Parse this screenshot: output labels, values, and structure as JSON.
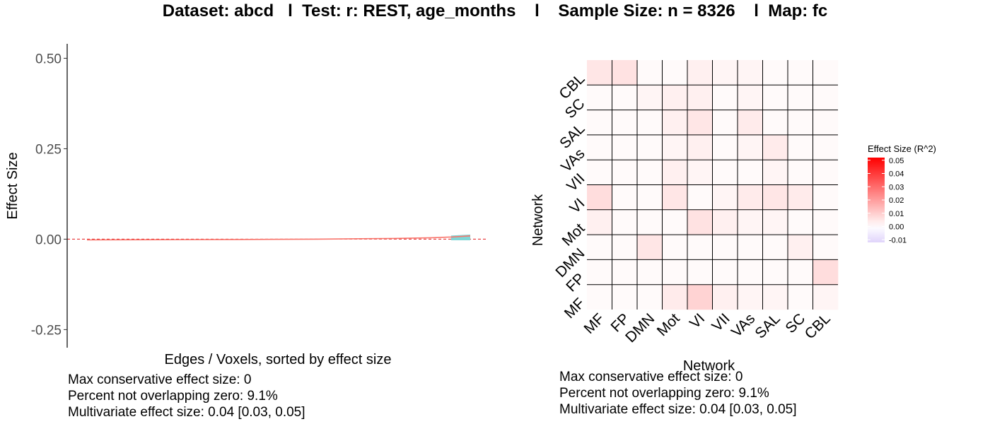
{
  "title": "Dataset: abcd   l  Test: r: REST, age_months    l    Sample Size: n = 8326    l  Map: fc",
  "left_stats": {
    "line1": "Max conservative effect size: 0",
    "line2": "Percent not overlapping zero: 9.1%",
    "line3": "Multivariate effect size: 0.04 [0.03, 0.05]"
  },
  "right_stats": {
    "line1": "Max conservative effect size: 0",
    "line2": "Percent not overlapping zero: 9.1%",
    "line3": "Multivariate effect size: 0.04 [0.03, 0.05]"
  },
  "colors": {
    "line": "#f8766d",
    "ci_fill": "#7fd6d6",
    "zero_line": "#e41a1c",
    "heat_low": "#e0d4fb",
    "heat_mid": "#ffffff",
    "heat_high": "#ff0000"
  },
  "chart_data": [
    {
      "type": "line",
      "xlabel": "Edges / Voxels, sorted by effect size",
      "ylabel": "Effect Size",
      "ylim": [
        -0.3,
        0.54
      ],
      "yticks": [
        -0.25,
        0.0,
        0.25,
        0.5
      ],
      "ytick_labels": [
        "-0.25",
        "0.00",
        "0.25",
        "0.50"
      ],
      "grid": false,
      "x_axis_ticks": false,
      "reference_line": 0,
      "series": [
        {
          "x": [
            0,
            0.2,
            0.4,
            0.6,
            0.8,
            0.9,
            0.95,
            1.0
          ],
          "values": [
            -0.002,
            -0.0015,
            -0.001,
            0,
            0.002,
            0.004,
            0.006,
            0.009
          ]
        }
      ]
    },
    {
      "type": "heatmap",
      "xlabel": "Network",
      "ylabel": "Network",
      "x_categories": [
        "MF",
        "FP",
        "DMN",
        "Mot",
        "VI",
        "VII",
        "VAs",
        "SAL",
        "SC",
        "CBL"
      ],
      "y_categories": [
        "MF",
        "FP",
        "DMN",
        "Mot",
        "VI",
        "VII",
        "VAs",
        "SAL",
        "SC",
        "CBL"
      ],
      "legend_title": "Effect Size (R^2)",
      "legend_range": [
        -0.012,
        0.052
      ],
      "legend_ticks": [
        0.05,
        0.04,
        0.03,
        0.02,
        0.01,
        0.0,
        -0.01
      ],
      "legend_tick_labels": [
        "0.05",
        "0.04",
        "0.03",
        "0.02",
        "0.01",
        "0.00",
        "-0.01"
      ],
      "values": [
        [
          0.001,
          0.001,
          0.001,
          0.004,
          0.009,
          0.003,
          0.002,
          0.002,
          0.001,
          0.002
        ],
        [
          0.001,
          0.001,
          0.001,
          0.001,
          0.001,
          0.001,
          0.001,
          0.001,
          0.001,
          0.007
        ],
        [
          0.001,
          0.001,
          0.005,
          0.001,
          0.001,
          0.001,
          0.001,
          0.001,
          0.003,
          0.001
        ],
        [
          0.003,
          0.001,
          0.001,
          0.001,
          0.006,
          0.003,
          0.002,
          0.002,
          0.001,
          0.001
        ],
        [
          0.007,
          0.001,
          0.001,
          0.005,
          0.001,
          0.002,
          0.004,
          0.005,
          0.004,
          0.001
        ],
        [
          0.001,
          0.001,
          0.001,
          0.003,
          0.002,
          0.001,
          0.001,
          0.002,
          0.001,
          0.001
        ],
        [
          0.001,
          0.001,
          0.001,
          0.002,
          0.003,
          0.001,
          0.002,
          0.004,
          0.001,
          0.001
        ],
        [
          0.001,
          0.001,
          0.001,
          0.003,
          0.005,
          0.001,
          0.004,
          0.001,
          0.001,
          0.001
        ],
        [
          0.001,
          0.001,
          0.002,
          0.003,
          0.003,
          0.001,
          0.002,
          0.001,
          0.001,
          0.001
        ],
        [
          0.005,
          0.006,
          0.001,
          0.001,
          0.003,
          0.002,
          0.002,
          0.001,
          0.001,
          0.001
        ]
      ]
    }
  ]
}
